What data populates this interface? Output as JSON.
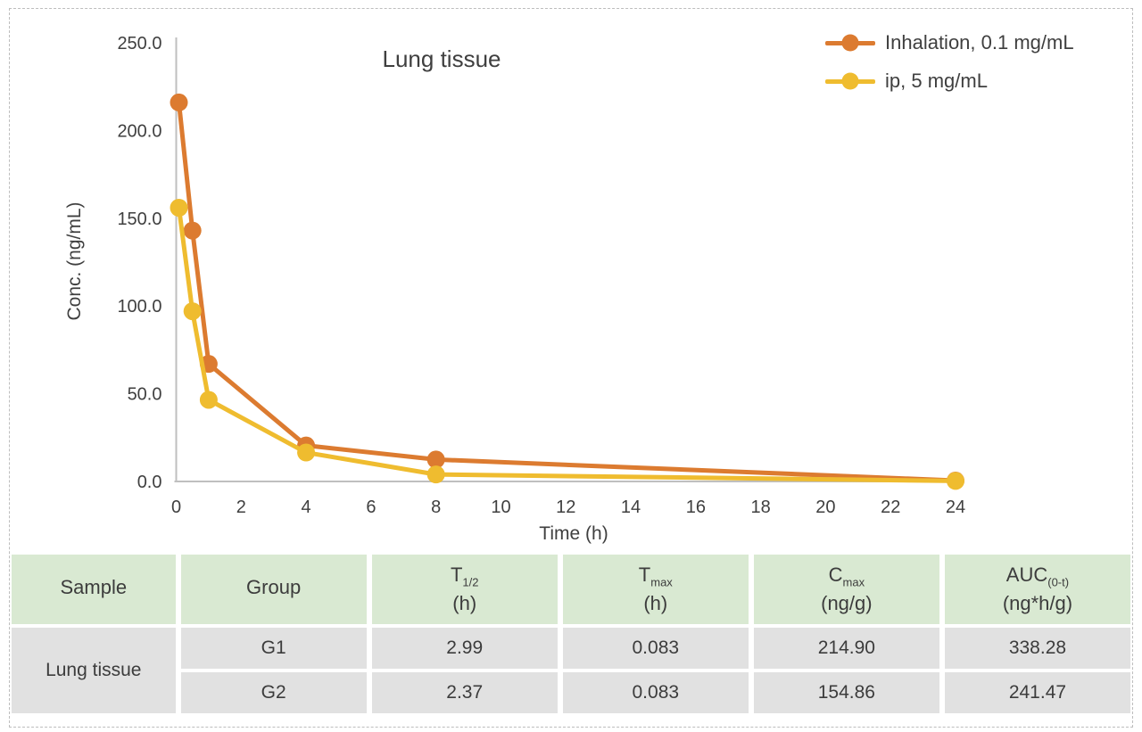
{
  "colors": {
    "frame_border": "#bdbdbd",
    "axis_gray": "#bfbfbf",
    "chart_text": "#3f3f3f",
    "table_header_bg": "#d9e9d2",
    "table_row_bg": "#e1e1e1",
    "series_orange": "#dc7b30",
    "series_yellow": "#efbc2f"
  },
  "chart_data": {
    "type": "line",
    "title": "Lung tissue",
    "xlabel": "Time (h)",
    "ylabel": "Conc. (ng/mL)",
    "xlim": [
      0,
      24
    ],
    "ylim": [
      0,
      250
    ],
    "x_ticks": [
      0,
      2,
      4,
      6,
      8,
      10,
      12,
      14,
      16,
      18,
      20,
      22,
      24
    ],
    "y_ticks": [
      0,
      50,
      100,
      150,
      200,
      250
    ],
    "grid": false,
    "legend_position": "top-right",
    "marker": "circle",
    "series": [
      {
        "name": "Inhalation, 0.1 mg/mL",
        "color": "#dc7b30",
        "x": [
          0.083,
          0.5,
          1,
          4,
          8,
          24
        ],
        "y": [
          216,
          143,
          67,
          20.5,
          12.5,
          0.5
        ]
      },
      {
        "name": "ip, 5 mg/mL",
        "color": "#efbc2f",
        "x": [
          0.083,
          0.5,
          1,
          4,
          8,
          24
        ],
        "y": [
          156,
          97,
          46.5,
          16.5,
          4,
          0.3
        ]
      }
    ]
  },
  "table": {
    "headers": [
      {
        "main": "Sample"
      },
      {
        "main": "Group"
      },
      {
        "main": "T",
        "sub": "1/2",
        "unit": "(h)"
      },
      {
        "main": "T",
        "sub": "max",
        "unit": "(h)"
      },
      {
        "main": "C",
        "sub": "max",
        "unit": "(ng/g)"
      },
      {
        "main": "AUC",
        "sub": "(0-t)",
        "unit": "(ng*h/g)"
      }
    ],
    "rows": [
      {
        "sample": "Lung tissue",
        "group": "G1",
        "t_half": "2.99",
        "t_max": "0.083",
        "c_max": "214.90",
        "auc_0_t": "338.28"
      },
      {
        "group": "G2",
        "t_half": "2.37",
        "t_max": "0.083",
        "c_max": "154.86",
        "auc_0_t": "241.47"
      }
    ]
  }
}
